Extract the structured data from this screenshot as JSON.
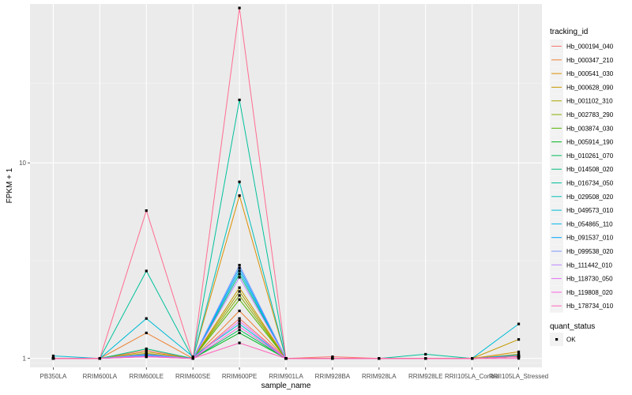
{
  "chart_data": {
    "type": "line",
    "xlabel": "sample_name",
    "ylabel": "FPKM + 1",
    "y_scale": "log10",
    "ylim": [
      0.9,
      65
    ],
    "y_ticks": [
      1,
      10
    ],
    "y_tick_labels": [
      "1",
      "10"
    ],
    "categories": [
      "PB350LA",
      "RRIM600LA",
      "RRIM600LE",
      "RRIM600SE",
      "RRIM600PE",
      "RRIM901LA",
      "RRIM928BA",
      "RRIM928LA",
      "RRIM928LE",
      "RRII105LA_Control",
      "RRII105LA_Stressed"
    ],
    "legend_title": "tracking_id",
    "legend2_title": "quant_status",
    "legend2_items": [
      {
        "label": "OK",
        "marker": "square",
        "color": "#000000"
      }
    ],
    "grid": true,
    "legend_position": "right",
    "series": [
      {
        "name": "Hb_000194_040",
        "color": "#F8766D",
        "values": [
          1.0,
          1.0,
          1.1,
          1.0,
          1.6,
          1.0,
          1.02,
          1.0,
          1.0,
          1.0,
          1.03
        ]
      },
      {
        "name": "Hb_000347_210",
        "color": "#EB8335",
        "values": [
          1.0,
          1.0,
          1.35,
          1.0,
          1.75,
          1.0,
          1.0,
          1.0,
          1.0,
          1.0,
          1.03
        ]
      },
      {
        "name": "Hb_000541_030",
        "color": "#DA8F00",
        "values": [
          1.0,
          1.0,
          1.05,
          1.0,
          6.8,
          1.0,
          1.0,
          1.0,
          1.0,
          1.0,
          1.08
        ]
      },
      {
        "name": "Hb_000628_090",
        "color": "#C49A00",
        "values": [
          1.0,
          1.0,
          1.08,
          1.0,
          2.3,
          1.0,
          1.0,
          1.0,
          1.0,
          1.0,
          1.25
        ]
      },
      {
        "name": "Hb_001102_310",
        "color": "#A9A400",
        "values": [
          1.0,
          1.0,
          1.06,
          1.0,
          2.2,
          1.0,
          1.0,
          1.0,
          1.0,
          1.0,
          1.05
        ]
      },
      {
        "name": "Hb_002783_290",
        "color": "#86AC00",
        "values": [
          1.0,
          1.0,
          1.05,
          1.0,
          2.1,
          1.0,
          1.0,
          1.0,
          1.0,
          1.0,
          1.02
        ]
      },
      {
        "name": "Hb_003874_030",
        "color": "#53B400",
        "values": [
          1.0,
          1.0,
          1.04,
          1.0,
          2.0,
          1.0,
          1.0,
          1.0,
          1.0,
          1.0,
          1.02
        ]
      },
      {
        "name": "Hb_005914_190",
        "color": "#00B81F",
        "values": [
          1.0,
          1.0,
          1.03,
          1.0,
          1.35,
          1.0,
          1.0,
          1.0,
          1.0,
          1.0,
          1.02
        ]
      },
      {
        "name": "Hb_010261_070",
        "color": "#00BC59",
        "values": [
          1.0,
          1.0,
          1.04,
          1.0,
          1.4,
          1.0,
          1.0,
          1.0,
          1.0,
          1.0,
          1.02
        ]
      },
      {
        "name": "Hb_014508_020",
        "color": "#00BF7D",
        "values": [
          1.0,
          1.0,
          1.12,
          1.0,
          2.7,
          1.0,
          1.0,
          1.0,
          1.0,
          1.0,
          1.02
        ]
      },
      {
        "name": "Hb_016734_050",
        "color": "#00C19C",
        "values": [
          1.0,
          1.0,
          2.8,
          1.0,
          21.0,
          1.0,
          1.0,
          1.0,
          1.05,
          1.0,
          1.02
        ]
      },
      {
        "name": "Hb_029508_020",
        "color": "#00C0B8",
        "values": [
          1.0,
          1.0,
          1.03,
          1.0,
          8.0,
          1.0,
          1.0,
          1.0,
          1.0,
          1.0,
          1.02
        ]
      },
      {
        "name": "Hb_049573_010",
        "color": "#00BCD5",
        "values": [
          1.03,
          1.0,
          1.6,
          1.02,
          1.5,
          1.0,
          1.0,
          1.0,
          1.0,
          1.0,
          1.5
        ]
      },
      {
        "name": "Hb_054865_110",
        "color": "#00B5EE",
        "values": [
          1.0,
          1.0,
          1.03,
          1.0,
          2.8,
          1.0,
          1.0,
          1.0,
          1.0,
          1.0,
          1.02
        ]
      },
      {
        "name": "Hb_091537_010",
        "color": "#00A5FF",
        "values": [
          1.0,
          1.0,
          1.04,
          1.0,
          2.9,
          1.0,
          1.0,
          1.0,
          1.0,
          1.0,
          1.04
        ]
      },
      {
        "name": "Hb_099538_020",
        "color": "#7997FF",
        "values": [
          1.0,
          1.0,
          1.05,
          1.0,
          3.0,
          1.0,
          1.0,
          1.0,
          1.0,
          1.0,
          1.02
        ]
      },
      {
        "name": "Hb_111442_010",
        "color": "#BB83FF",
        "values": [
          1.0,
          1.0,
          1.03,
          1.0,
          2.6,
          1.0,
          1.0,
          1.0,
          1.0,
          1.0,
          1.02
        ]
      },
      {
        "name": "Hb_118730_050",
        "color": "#E26EF7",
        "values": [
          1.0,
          1.0,
          1.02,
          1.0,
          1.55,
          1.0,
          1.0,
          1.0,
          1.0,
          1.0,
          1.02
        ]
      },
      {
        "name": "Hb_119808_020",
        "color": "#F863DF",
        "values": [
          1.0,
          1.0,
          1.02,
          1.0,
          1.45,
          1.0,
          1.0,
          1.0,
          1.0,
          1.0,
          1.02
        ]
      },
      {
        "name": "Hb_178734_010",
        "color": "#FF62BC",
        "values": [
          1.0,
          1.0,
          1.02,
          1.0,
          1.2,
          1.0,
          1.0,
          1.0,
          1.0,
          1.0,
          1.0
        ]
      },
      {
        "name": "",
        "color": "#FF6C91",
        "values": [
          1.0,
          1.0,
          5.7,
          1.0,
          62.0,
          1.0,
          1.0,
          1.0,
          1.0,
          1.0,
          1.02
        ]
      }
    ]
  }
}
